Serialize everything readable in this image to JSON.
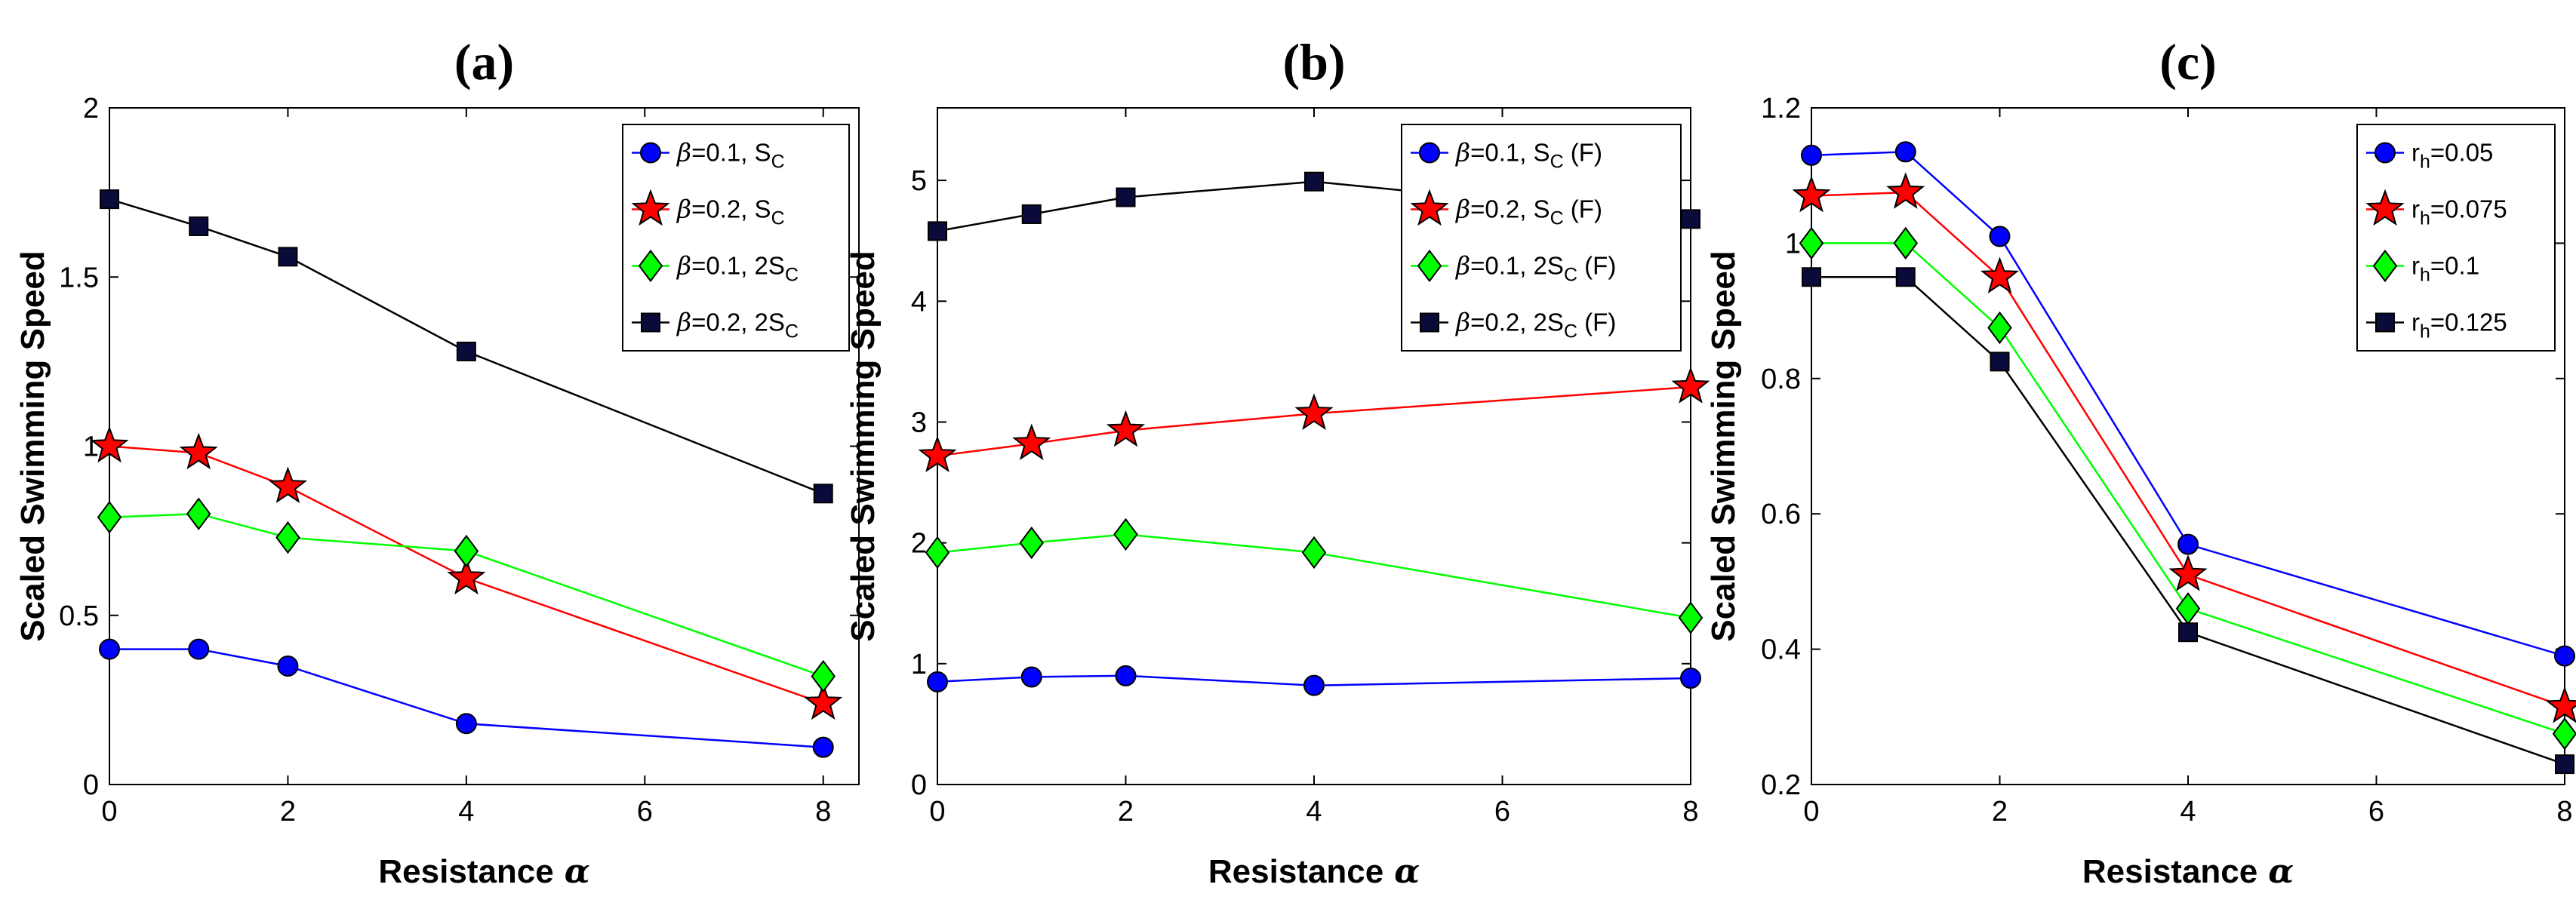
{
  "chart_data": [
    {
      "type": "line",
      "title": "(a)",
      "xlabel": "Resistance",
      "xlabel_symbol": "α",
      "ylabel": "Scaled Swimming Speed",
      "xlim": [
        0,
        8.4
      ],
      "ylim": [
        0,
        2
      ],
      "xticks": [
        0,
        2,
        4,
        6,
        8
      ],
      "xtick_labels": [
        "0",
        "2",
        "4",
        "6",
        "8"
      ],
      "yticks": [
        0,
        0.5,
        1,
        1.5,
        2
      ],
      "ytick_labels": [
        "0",
        "0.5",
        "1",
        "1.5",
        "2"
      ],
      "legend_position": "top-right",
      "x": [
        0,
        1,
        2,
        4,
        8
      ],
      "series": [
        {
          "name": "β=0.1, SC",
          "legend_parts": [
            {
              "t": "β",
              "greek": true
            },
            {
              "t": "=0.1, S"
            },
            {
              "t": "C",
              "sub": true
            }
          ],
          "color": "#0000ff",
          "marker_fill": "#0000ff",
          "marker": "circle",
          "values": [
            0.4,
            0.4,
            0.35,
            0.18,
            0.11
          ]
        },
        {
          "name": "β=0.2, SC",
          "legend_parts": [
            {
              "t": "β",
              "greek": true
            },
            {
              "t": "=0.2, S"
            },
            {
              "t": "C",
              "sub": true
            }
          ],
          "color": "#ff0000",
          "marker_fill": "#ff0000",
          "marker": "star",
          "values": [
            1.0,
            0.98,
            0.88,
            0.61,
            0.24
          ]
        },
        {
          "name": "β=0.1, 2SC",
          "legend_parts": [
            {
              "t": "β",
              "greek": true
            },
            {
              "t": "=0.1, 2S"
            },
            {
              "t": "C",
              "sub": true
            }
          ],
          "color": "#00ff00",
          "marker_fill": "#00ff00",
          "marker": "diamond",
          "values": [
            0.79,
            0.8,
            0.73,
            0.69,
            0.32
          ]
        },
        {
          "name": "β=0.2, 2SC",
          "legend_parts": [
            {
              "t": "β",
              "greek": true
            },
            {
              "t": "=0.2, 2S"
            },
            {
              "t": "C",
              "sub": true
            }
          ],
          "color": "#000000",
          "marker_fill": "#0b0b3b",
          "marker": "square",
          "values": [
            1.73,
            1.65,
            1.56,
            1.28,
            0.86
          ]
        }
      ]
    },
    {
      "type": "line",
      "title": "(b)",
      "xlabel": "Resistance",
      "xlabel_symbol": "α",
      "ylabel": "Scaled Swimming Speed",
      "xlim": [
        0,
        8
      ],
      "ylim": [
        0,
        5.6
      ],
      "xticks": [
        0,
        2,
        4,
        6,
        8
      ],
      "xtick_labels": [
        "0",
        "2",
        "4",
        "6",
        "8"
      ],
      "yticks": [
        0,
        1,
        2,
        3,
        4,
        5
      ],
      "ytick_labels": [
        "0",
        "1",
        "2",
        "3",
        "4",
        "5"
      ],
      "legend_position": "top-right",
      "x": [
        0,
        1,
        2,
        4,
        8
      ],
      "series": [
        {
          "name": "β=0.1, SC (F)",
          "legend_parts": [
            {
              "t": "β",
              "greek": true
            },
            {
              "t": "=0.1, S"
            },
            {
              "t": "C",
              "sub": true
            },
            {
              "t": " (F)"
            }
          ],
          "color": "#0000ff",
          "marker_fill": "#0000ff",
          "marker": "circle",
          "values": [
            0.85,
            0.89,
            0.9,
            0.82,
            0.88
          ]
        },
        {
          "name": "β=0.2, SC (F)",
          "legend_parts": [
            {
              "t": "β",
              "greek": true
            },
            {
              "t": "=0.2, S"
            },
            {
              "t": "C",
              "sub": true
            },
            {
              "t": " (F)"
            }
          ],
          "color": "#ff0000",
          "marker_fill": "#ff0000",
          "marker": "star",
          "values": [
            2.72,
            2.82,
            2.93,
            3.07,
            3.29
          ]
        },
        {
          "name": "β=0.1, 2SC (F)",
          "legend_parts": [
            {
              "t": "β",
              "greek": true
            },
            {
              "t": "=0.1, 2S"
            },
            {
              "t": "C",
              "sub": true
            },
            {
              "t": " (F)"
            }
          ],
          "color": "#00ff00",
          "marker_fill": "#00ff00",
          "marker": "diamond",
          "values": [
            1.92,
            2.0,
            2.07,
            1.92,
            1.38
          ]
        },
        {
          "name": "β=0.2, 2SC (F)",
          "legend_parts": [
            {
              "t": "β",
              "greek": true
            },
            {
              "t": "=0.2, 2S"
            },
            {
              "t": "C",
              "sub": true
            },
            {
              "t": " (F)"
            }
          ],
          "color": "#000000",
          "marker_fill": "#0b0b3b",
          "marker": "square",
          "values": [
            4.58,
            4.72,
            4.86,
            4.99,
            4.68
          ]
        }
      ]
    },
    {
      "type": "line",
      "title": "(c)",
      "xlabel": "Resistance",
      "xlabel_symbol": "α",
      "ylabel": "Scaled Swimming Speed",
      "xlim": [
        0,
        8
      ],
      "ylim": [
        0.2,
        1.2
      ],
      "xticks": [
        0,
        2,
        4,
        6,
        8
      ],
      "xtick_labels": [
        "0",
        "2",
        "4",
        "6",
        "8"
      ],
      "yticks": [
        0.2,
        0.4,
        0.6,
        0.8,
        1.0,
        1.2
      ],
      "ytick_labels": [
        "0.2",
        "0.4",
        "0.6",
        "0.8",
        "1",
        "1.2"
      ],
      "legend_position": "top-right",
      "x": [
        0,
        1,
        2,
        4,
        8
      ],
      "series": [
        {
          "name": "rh=0.05",
          "legend_parts": [
            {
              "t": "r"
            },
            {
              "t": "h",
              "sub": true
            },
            {
              "t": "=0.05"
            }
          ],
          "color": "#0000ff",
          "marker_fill": "#0000ff",
          "marker": "circle",
          "values": [
            1.13,
            1.135,
            1.01,
            0.555,
            0.39
          ]
        },
        {
          "name": "rh=0.075",
          "legend_parts": [
            {
              "t": "r"
            },
            {
              "t": "h",
              "sub": true
            },
            {
              "t": "=0.075"
            }
          ],
          "color": "#ff0000",
          "marker_fill": "#ff0000",
          "marker": "star",
          "values": [
            1.07,
            1.075,
            0.95,
            0.51,
            0.315
          ]
        },
        {
          "name": "rh=0.1",
          "legend_parts": [
            {
              "t": "r"
            },
            {
              "t": "h",
              "sub": true
            },
            {
              "t": "=0.1"
            }
          ],
          "color": "#00ff00",
          "marker_fill": "#00ff00",
          "marker": "diamond",
          "values": [
            1.0,
            1.0,
            0.875,
            0.46,
            0.275
          ]
        },
        {
          "name": "rh=0.125",
          "legend_parts": [
            {
              "t": "r"
            },
            {
              "t": "h",
              "sub": true
            },
            {
              "t": "=0.125"
            }
          ],
          "color": "#000000",
          "marker_fill": "#0b0b3b",
          "marker": "square",
          "values": [
            0.95,
            0.95,
            0.825,
            0.425,
            0.23
          ]
        }
      ]
    }
  ]
}
